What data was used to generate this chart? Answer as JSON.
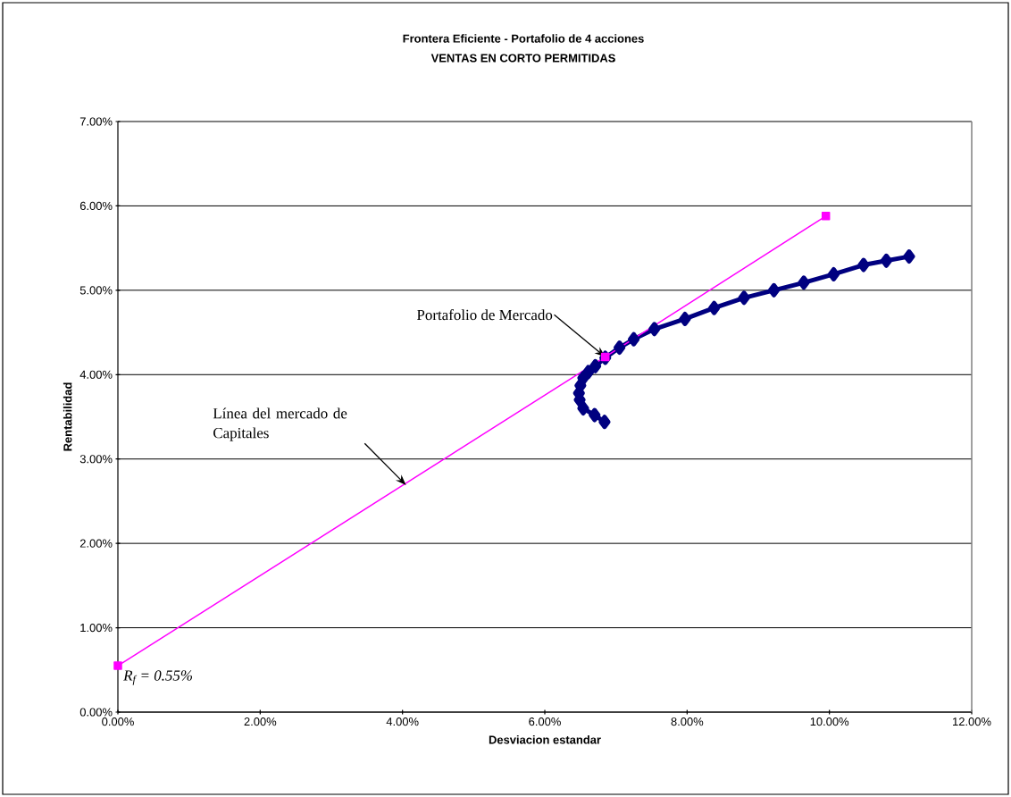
{
  "chart_data": {
    "type": "line",
    "title": "Frontera Eficiente - Portafolio de 4 acciones",
    "subtitle": "VENTAS EN CORTO PERMITIDAS",
    "xlabel": "Desviacion estandar",
    "ylabel": "Rentabilidad",
    "x": [
      0,
      6.85,
      9.95
    ],
    "series": [
      {
        "color": "#000080",
        "marker": "diamond",
        "x": [
          6.84,
          6.7,
          6.54,
          6.49,
          6.48,
          6.5,
          6.54,
          6.61,
          6.71,
          6.85,
          7.05,
          7.25,
          7.54,
          7.97,
          8.38,
          8.8,
          9.22,
          9.64,
          10.06,
          10.48,
          10.8,
          11.12
        ],
        "values": [
          3.44,
          3.52,
          3.6,
          3.7,
          3.78,
          3.87,
          3.96,
          4.03,
          4.1,
          4.2,
          4.32,
          4.42,
          4.54,
          4.66,
          4.79,
          4.91,
          5.0,
          5.09,
          5.19,
          5.3,
          5.35,
          5.4
        ]
      },
      {
        "color": "#ff00ff",
        "marker": "square",
        "values": [
          0.55,
          4.21,
          5.88
        ]
      }
    ],
    "xlim": [
      0,
      12
    ],
    "ylim": [
      0,
      7
    ],
    "xticks": [
      {
        "value": 0,
        "label": "0.00%"
      },
      {
        "value": 2,
        "label": "2.00%"
      },
      {
        "value": 4,
        "label": "4.00%"
      },
      {
        "value": 6,
        "label": "6.00%"
      },
      {
        "value": 8,
        "label": "8.00%"
      },
      {
        "value": 10,
        "label": "10.00%"
      },
      {
        "value": 12,
        "label": "12.00%"
      }
    ],
    "yticks": [
      {
        "value": 0,
        "label": "0.00%"
      },
      {
        "value": 1,
        "label": "1.00%"
      },
      {
        "value": 2,
        "label": "2.00%"
      },
      {
        "value": 3,
        "label": "3.00%"
      },
      {
        "value": 4,
        "label": "4.00%"
      },
      {
        "value": 5,
        "label": "5.00%"
      },
      {
        "value": 6,
        "label": "6.00%"
      },
      {
        "value": 7,
        "label": "7.00%"
      }
    ],
    "grid": "y",
    "annotations": [
      {
        "text": "Portafolio de Mercado",
        "x": 6.85,
        "y": 4.21
      },
      {
        "text": "Línea del mercado de Capitales",
        "x": 4.05,
        "y": 2.69
      },
      {
        "text": "R$_{f}$ = 0.55%",
        "x": 0,
        "y": 0.55
      }
    ]
  }
}
